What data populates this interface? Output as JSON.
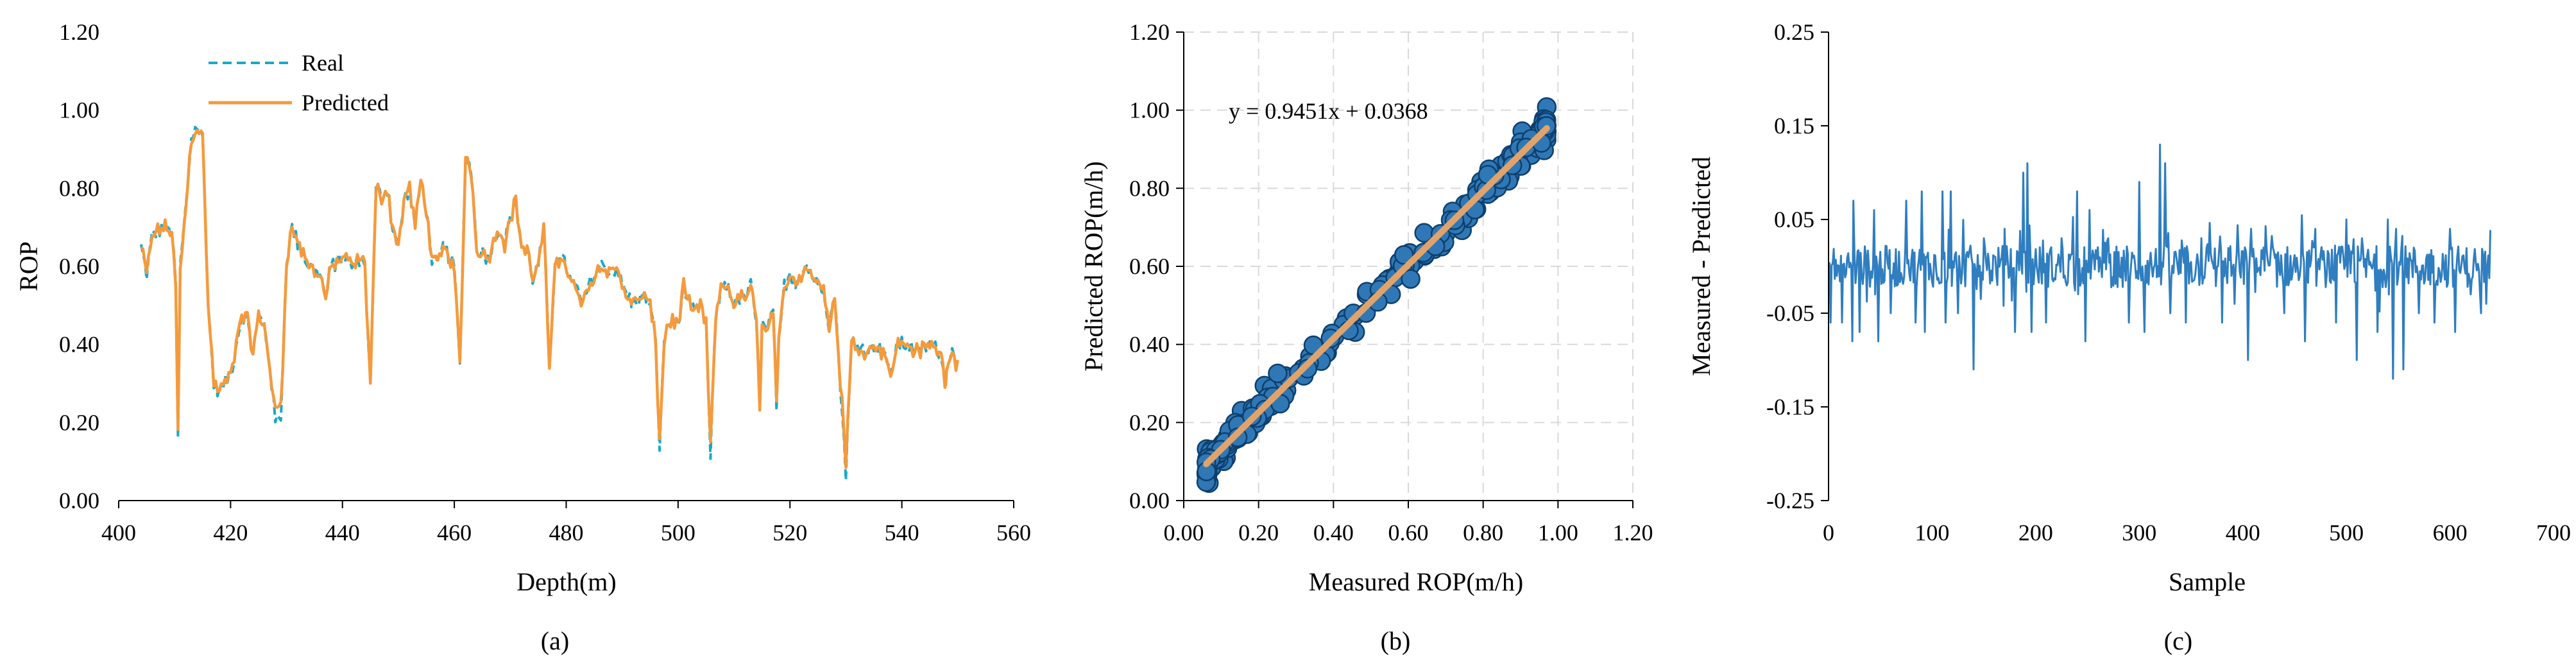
{
  "colors": {
    "real": "#17a9c9",
    "predicted": "#f59a3c",
    "scatter_fill": "#2f78b5",
    "scatter_edge": "#0d3f6e",
    "fit_line": "#e0a36b",
    "residual": "#2f7ec0",
    "grid": "#d9d9d9",
    "axis": "#000000"
  },
  "chart_data": [
    {
      "id": "a",
      "type": "line",
      "caption": "(a)",
      "xlabel": "Depth(m)",
      "ylabel": "ROP",
      "xlim": [
        400,
        560
      ],
      "ylim": [
        0,
        1.2
      ],
      "xticks": [
        "400",
        "420",
        "440",
        "460",
        "480",
        "500",
        "520",
        "540",
        "560"
      ],
      "yticks": [
        "0.00",
        "0.20",
        "0.40",
        "0.60",
        "0.80",
        "1.00",
        "1.20"
      ],
      "legend": {
        "position": "top-left",
        "entries": [
          "Real",
          "Predicted"
        ]
      },
      "anchors": [
        [
          404,
          0.65
        ],
        [
          405,
          0.58
        ],
        [
          406,
          0.68
        ],
        [
          408,
          0.7
        ],
        [
          409.5,
          0.69
        ],
        [
          410.2,
          0.55
        ],
        [
          410.6,
          0.15
        ],
        [
          411,
          0.6
        ],
        [
          412,
          0.75
        ],
        [
          413,
          0.93
        ],
        [
          414,
          0.96
        ],
        [
          415,
          0.93
        ],
        [
          416,
          0.5
        ],
        [
          417,
          0.3
        ],
        [
          418,
          0.28
        ],
        [
          420,
          0.32
        ],
        [
          421,
          0.4
        ],
        [
          422,
          0.48
        ],
        [
          423,
          0.46
        ],
        [
          424,
          0.38
        ],
        [
          425,
          0.47
        ],
        [
          426,
          0.45
        ],
        [
          427,
          0.35
        ],
        [
          428,
          0.2
        ],
        [
          429,
          0.22
        ],
        [
          430,
          0.62
        ],
        [
          431,
          0.7
        ],
        [
          432,
          0.66
        ],
        [
          434,
          0.6
        ],
        [
          436,
          0.58
        ],
        [
          437,
          0.52
        ],
        [
          438,
          0.6
        ],
        [
          440,
          0.62
        ],
        [
          442,
          0.6
        ],
        [
          443,
          0.62
        ],
        [
          444,
          0.6
        ],
        [
          445,
          0.3
        ],
        [
          446,
          0.8
        ],
        [
          447,
          0.78
        ],
        [
          448,
          0.8
        ],
        [
          449,
          0.7
        ],
        [
          450,
          0.65
        ],
        [
          451,
          0.77
        ],
        [
          452,
          0.8
        ],
        [
          453,
          0.7
        ],
        [
          454,
          0.82
        ],
        [
          455,
          0.75
        ],
        [
          456,
          0.62
        ],
        [
          457,
          0.6
        ],
        [
          458,
          0.65
        ],
        [
          460,
          0.6
        ],
        [
          461,
          0.34
        ],
        [
          462,
          0.88
        ],
        [
          463,
          0.85
        ],
        [
          464,
          0.65
        ],
        [
          466,
          0.62
        ],
        [
          468,
          0.7
        ],
        [
          469,
          0.66
        ],
        [
          470,
          0.72
        ],
        [
          471,
          0.77
        ],
        [
          472,
          0.65
        ],
        [
          473,
          0.64
        ],
        [
          474,
          0.57
        ],
        [
          475,
          0.6
        ],
        [
          476,
          0.7
        ],
        [
          477,
          0.33
        ],
        [
          478,
          0.62
        ],
        [
          479,
          0.62
        ],
        [
          480,
          0.6
        ],
        [
          481,
          0.55
        ],
        [
          482,
          0.54
        ],
        [
          483,
          0.5
        ],
        [
          484,
          0.55
        ],
        [
          486,
          0.6
        ],
        [
          487,
          0.6
        ],
        [
          488,
          0.58
        ],
        [
          489,
          0.6
        ],
        [
          490,
          0.55
        ],
        [
          492,
          0.5
        ],
        [
          493,
          0.52
        ],
        [
          494,
          0.52
        ],
        [
          495,
          0.5
        ],
        [
          496,
          0.4
        ],
        [
          496.7,
          0.14
        ],
        [
          497.5,
          0.4
        ],
        [
          498,
          0.45
        ],
        [
          499,
          0.46
        ],
        [
          500,
          0.45
        ],
        [
          501,
          0.55
        ],
        [
          502,
          0.5
        ],
        [
          503,
          0.48
        ],
        [
          504,
          0.5
        ],
        [
          505,
          0.45
        ],
        [
          505.8,
          0.11
        ],
        [
          506.5,
          0.4
        ],
        [
          507,
          0.5
        ],
        [
          508,
          0.55
        ],
        [
          509,
          0.55
        ],
        [
          510,
          0.5
        ],
        [
          511,
          0.52
        ],
        [
          512,
          0.52
        ],
        [
          513,
          0.55
        ],
        [
          514,
          0.45
        ],
        [
          514.6,
          0.25
        ],
        [
          515,
          0.45
        ],
        [
          516,
          0.43
        ],
        [
          517,
          0.5
        ],
        [
          517.6,
          0.22
        ],
        [
          518,
          0.4
        ],
        [
          519,
          0.55
        ],
        [
          520,
          0.58
        ],
        [
          521,
          0.56
        ],
        [
          522,
          0.58
        ],
        [
          523,
          0.6
        ],
        [
          524,
          0.58
        ],
        [
          525,
          0.55
        ],
        [
          526,
          0.55
        ],
        [
          527,
          0.45
        ],
        [
          528,
          0.52
        ],
        [
          529,
          0.3
        ],
        [
          530,
          0.07
        ],
        [
          531,
          0.4
        ],
        [
          532,
          0.4
        ],
        [
          534,
          0.38
        ],
        [
          535,
          0.4
        ],
        [
          537,
          0.38
        ],
        [
          538,
          0.31
        ],
        [
          539,
          0.4
        ],
        [
          541,
          0.4
        ],
        [
          543,
          0.38
        ],
        [
          545,
          0.4
        ],
        [
          547,
          0.38
        ],
        [
          547.7,
          0.29
        ],
        [
          548,
          0.35
        ],
        [
          549,
          0.38
        ],
        [
          550,
          0.34
        ]
      ]
    },
    {
      "id": "b",
      "type": "scatter",
      "caption": "(b)",
      "xlabel": "Measured ROP(m/h)",
      "ylabel": "Predicted ROP(m/h)",
      "xlim": [
        0,
        1.2
      ],
      "ylim": [
        0,
        1.2
      ],
      "xticks": [
        "0.00",
        "0.20",
        "0.40",
        "0.60",
        "0.80",
        "1.00",
        "1.20"
      ],
      "yticks": [
        "0.00",
        "0.20",
        "0.40",
        "0.60",
        "0.80",
        "1.00",
        "1.20"
      ],
      "grid": true,
      "equation": "y = 0.9451x + 0.0368",
      "fit": {
        "slope": 0.9451,
        "intercept": 0.0368,
        "x_range": [
          0.06,
          0.97
        ]
      },
      "points_x_range": [
        0.06,
        0.97
      ],
      "points_count": 230
    },
    {
      "id": "c",
      "type": "line",
      "caption": "(c)",
      "xlabel": "Sample",
      "ylabel": "Measured - Predicted",
      "xlim": [
        0,
        700
      ],
      "ylim": [
        -0.25,
        0.25
      ],
      "xticks": [
        "0",
        "100",
        "200",
        "300",
        "400",
        "500",
        "600",
        "700"
      ],
      "yticks": [
        "-0.25",
        "-0.15",
        "-0.05",
        "0.05",
        "0.15",
        "0.25"
      ],
      "sample_count": 640,
      "spikes": [
        [
          2,
          -0.06
        ],
        [
          13,
          -0.06
        ],
        [
          23,
          -0.08
        ],
        [
          24,
          0.07
        ],
        [
          30,
          -0.07
        ],
        [
          44,
          0.06
        ],
        [
          48,
          -0.08
        ],
        [
          60,
          -0.05
        ],
        [
          75,
          0.07
        ],
        [
          84,
          -0.06
        ],
        [
          90,
          0.08
        ],
        [
          93,
          -0.07
        ],
        [
          110,
          0.08
        ],
        [
          113,
          -0.06
        ],
        [
          118,
          0.08
        ],
        [
          125,
          -0.05
        ],
        [
          140,
          -0.11
        ],
        [
          150,
          0.03
        ],
        [
          170,
          0.04
        ],
        [
          180,
          -0.07
        ],
        [
          188,
          0.1
        ],
        [
          192,
          0.11
        ],
        [
          196,
          -0.07
        ],
        [
          210,
          -0.06
        ],
        [
          225,
          0.03
        ],
        [
          240,
          0.08
        ],
        [
          248,
          -0.08
        ],
        [
          252,
          0.06
        ],
        [
          270,
          0.03
        ],
        [
          290,
          -0.06
        ],
        [
          300,
          0.09
        ],
        [
          305,
          -0.07
        ],
        [
          320,
          0.13
        ],
        [
          325,
          0.11
        ],
        [
          330,
          -0.05
        ],
        [
          345,
          -0.06
        ],
        [
          360,
          0.03
        ],
        [
          380,
          -0.06
        ],
        [
          392,
          -0.04
        ],
        [
          405,
          -0.1
        ],
        [
          408,
          0.04
        ],
        [
          420,
          0.02
        ],
        [
          440,
          -0.05
        ],
        [
          460,
          -0.08
        ],
        [
          470,
          0.04
        ],
        [
          490,
          -0.06
        ],
        [
          500,
          0.05
        ],
        [
          510,
          -0.1
        ],
        [
          515,
          0.03
        ],
        [
          530,
          -0.07
        ],
        [
          540,
          0.05
        ],
        [
          545,
          -0.12
        ],
        [
          548,
          0.04
        ],
        [
          555,
          -0.11
        ],
        [
          570,
          -0.05
        ],
        [
          585,
          -0.06
        ],
        [
          600,
          0.04
        ],
        [
          605,
          -0.07
        ],
        [
          620,
          -0.03
        ],
        [
          630,
          -0.05
        ],
        [
          635,
          -0.04
        ]
      ]
    }
  ]
}
